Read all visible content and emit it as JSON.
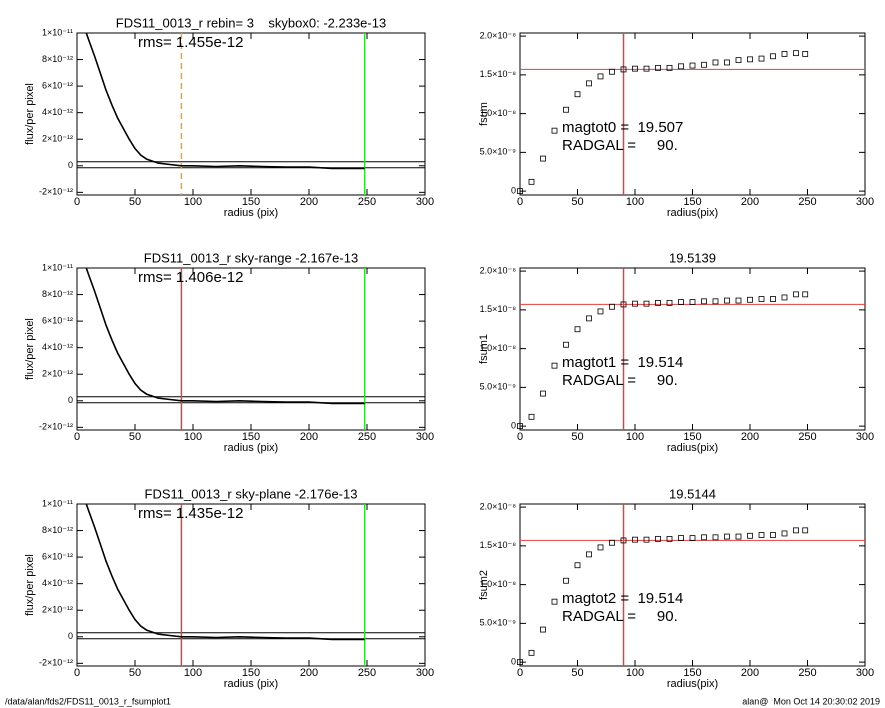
{
  "chart_data": [
    {
      "type": "line",
      "title": "FDS11_0013_r rebin= 3    skybox0: -2.233e-13",
      "annotation": "rms= 1.455e-12",
      "x_label": "radius (pix)",
      "y_label": "flux/per pixel",
      "color": "#000000",
      "x": [
        8,
        10,
        15,
        20,
        25,
        30,
        35,
        40,
        45,
        50,
        55,
        60,
        70,
        80,
        90,
        100,
        120,
        140,
        160,
        180,
        200,
        220,
        248
      ],
      "values": [
        1e-11,
        9.5e-12,
        8.3e-12,
        7e-12,
        5.7e-12,
        4.6e-12,
        3.6e-12,
        2.8e-12,
        2e-12,
        1.3e-12,
        8e-13,
        5e-13,
        2e-13,
        1e-13,
        0,
        0,
        -5e-14,
        0,
        -5e-14,
        -1e-13,
        -1e-13,
        -2e-13,
        -2e-13
      ],
      "vlines": [
        {
          "x": 90,
          "color": "#f0a030",
          "dash": true
        },
        {
          "x": 248,
          "color": "#33dd33",
          "dash": false
        }
      ],
      "hlines": [
        {
          "y": 3e-13,
          "color": "#000000"
        },
        {
          "y": -1.5e-13,
          "color": "#000000"
        }
      ],
      "xlim": [
        0,
        300
      ],
      "xticks": [
        0,
        50,
        100,
        150,
        200,
        250,
        300
      ],
      "ylim": [
        -2.2e-12,
        1e-11
      ],
      "yticks": [
        {
          "value": -2e-12,
          "label": "-2×10⁻¹²"
        },
        0,
        {
          "value": 2e-12,
          "label": "2×10⁻¹²"
        },
        {
          "value": 4e-12,
          "label": "4×10⁻¹²"
        },
        {
          "value": 6e-12,
          "label": "6×10⁻¹²"
        },
        {
          "value": 8e-12,
          "label": "8×10⁻¹²"
        },
        {
          "value": 1e-11,
          "label": "1×10⁻¹¹"
        }
      ]
    },
    {
      "type": "scatter",
      "annotations": [
        "magtot0 =  19.507",
        "RADGAL =     90."
      ],
      "x_label": "radius(pix)",
      "y_label": "fsum",
      "color": "#000000",
      "x": [
        0,
        10,
        20,
        30,
        40,
        50,
        60,
        70,
        80,
        90,
        100,
        110,
        120,
        130,
        140,
        150,
        160,
        170,
        180,
        190,
        200,
        210,
        220,
        230,
        240,
        248
      ],
      "values": [
        0,
        1.2e-09,
        4.2e-09,
        7.8e-09,
        1.05e-08,
        1.25e-08,
        1.39e-08,
        1.48e-08,
        1.54e-08,
        1.57e-08,
        1.58e-08,
        1.58e-08,
        1.59e-08,
        1.59e-08,
        1.61e-08,
        1.62e-08,
        1.63e-08,
        1.66e-08,
        1.66e-08,
        1.69e-08,
        1.7e-08,
        1.71e-08,
        1.74e-08,
        1.77e-08,
        1.78e-08,
        1.77e-08
      ],
      "vlines": [
        {
          "x": 90,
          "color": "#e04040",
          "dash": false
        }
      ],
      "hlines": [
        {
          "y": 1.57e-08,
          "color": "#e04040"
        }
      ],
      "xlim": [
        0,
        300
      ],
      "xticks": [
        0,
        50,
        100,
        150,
        200,
        250,
        300
      ],
      "ylim": [
        -5e-10,
        2.04e-08
      ],
      "yticks": [
        0,
        {
          "value": 5e-09,
          "label": "5.0×10⁻⁹"
        },
        {
          "value": 1e-08,
          "label": "1.0×10⁻⁸"
        },
        {
          "value": 1.5e-08,
          "label": "1.5×10⁻⁸"
        },
        {
          "value": 2e-08,
          "label": "2.0×10⁻⁸"
        }
      ]
    },
    {
      "type": "line",
      "title": "FDS11_0013_r sky-range -2.167e-13",
      "annotation": "rms= 1.406e-12",
      "x_label": "radius (pix)",
      "y_label": "flux/per pixel",
      "color": "#000000",
      "x": [
        8,
        10,
        15,
        20,
        25,
        30,
        35,
        40,
        45,
        50,
        55,
        60,
        70,
        80,
        90,
        100,
        120,
        140,
        160,
        180,
        200,
        220,
        248
      ],
      "values": [
        1e-11,
        9.5e-12,
        8.3e-12,
        7e-12,
        5.7e-12,
        4.6e-12,
        3.6e-12,
        2.8e-12,
        2e-12,
        1.3e-12,
        8e-13,
        5e-13,
        2e-13,
        1e-13,
        0,
        0,
        -5e-14,
        0,
        -5e-14,
        -1e-13,
        -1e-13,
        -2e-13,
        -2e-13
      ],
      "vlines": [
        {
          "x": 90,
          "color": "#e04040",
          "dash": false
        },
        {
          "x": 248,
          "color": "#33dd33",
          "dash": false
        }
      ],
      "hlines": [
        {
          "y": 3e-13,
          "color": "#000000"
        },
        {
          "y": -1.5e-13,
          "color": "#000000"
        }
      ],
      "xlim": [
        0,
        300
      ],
      "xticks": [
        0,
        50,
        100,
        150,
        200,
        250,
        300
      ],
      "ylim": [
        -2.2e-12,
        1e-11
      ],
      "yticks": [
        {
          "value": -2e-12,
          "label": "-2×10⁻¹²"
        },
        0,
        {
          "value": 2e-12,
          "label": "2×10⁻¹²"
        },
        {
          "value": 4e-12,
          "label": "4×10⁻¹²"
        },
        {
          "value": 6e-12,
          "label": "6×10⁻¹²"
        },
        {
          "value": 8e-12,
          "label": "8×10⁻¹²"
        },
        {
          "value": 1e-11,
          "label": "1×10⁻¹¹"
        }
      ]
    },
    {
      "type": "scatter",
      "title": "19.5139",
      "annotations": [
        "magtot1 =  19.514",
        "RADGAL =     90."
      ],
      "x_label": "radius(pix)",
      "y_label": "fsum1",
      "color": "#000000",
      "x": [
        0,
        10,
        20,
        30,
        40,
        50,
        60,
        70,
        80,
        90,
        100,
        110,
        120,
        130,
        140,
        150,
        160,
        170,
        180,
        190,
        200,
        210,
        220,
        230,
        240,
        248
      ],
      "values": [
        0,
        1.2e-09,
        4.2e-09,
        7.8e-09,
        1.05e-08,
        1.25e-08,
        1.39e-08,
        1.48e-08,
        1.54e-08,
        1.57e-08,
        1.58e-08,
        1.58e-08,
        1.59e-08,
        1.59e-08,
        1.6e-08,
        1.6e-08,
        1.61e-08,
        1.61e-08,
        1.62e-08,
        1.62e-08,
        1.63e-08,
        1.64e-08,
        1.64e-08,
        1.66e-08,
        1.7e-08,
        1.7e-08
      ],
      "vlines": [
        {
          "x": 90,
          "color": "#e04040",
          "dash": false
        }
      ],
      "hlines": [
        {
          "y": 1.57e-08,
          "color": "#e04040"
        }
      ],
      "xlim": [
        0,
        300
      ],
      "xticks": [
        0,
        50,
        100,
        150,
        200,
        250,
        300
      ],
      "ylim": [
        -5e-10,
        2.04e-08
      ],
      "yticks": [
        0,
        {
          "value": 5e-09,
          "label": "5.0×10⁻⁹"
        },
        {
          "value": 1e-08,
          "label": "1.0×10⁻⁸"
        },
        {
          "value": 1.5e-08,
          "label": "1.5×10⁻⁸"
        },
        {
          "value": 2e-08,
          "label": "2.0×10⁻⁸"
        }
      ]
    },
    {
      "type": "line",
      "title": "FDS11_0013_r sky-plane -2.176e-13",
      "annotation": "rms= 1.435e-12",
      "x_label": "radius (pix)",
      "y_label": "flux/per pixel",
      "color": "#000000",
      "x": [
        8,
        10,
        15,
        20,
        25,
        30,
        35,
        40,
        45,
        50,
        55,
        60,
        70,
        80,
        90,
        100,
        120,
        140,
        160,
        180,
        200,
        220,
        248
      ],
      "values": [
        1e-11,
        9.5e-12,
        8.3e-12,
        7e-12,
        5.7e-12,
        4.6e-12,
        3.6e-12,
        2.8e-12,
        2e-12,
        1.3e-12,
        8e-13,
        5e-13,
        2e-13,
        1e-13,
        0,
        0,
        -5e-14,
        0,
        -5e-14,
        -1e-13,
        -1e-13,
        -2e-13,
        -2e-13
      ],
      "vlines": [
        {
          "x": 90,
          "color": "#e04040",
          "dash": false
        },
        {
          "x": 248,
          "color": "#33dd33",
          "dash": false
        }
      ],
      "hlines": [
        {
          "y": 3e-13,
          "color": "#000000"
        },
        {
          "y": -1.5e-13,
          "color": "#000000"
        }
      ],
      "xlim": [
        0,
        300
      ],
      "xticks": [
        0,
        50,
        100,
        150,
        200,
        250,
        300
      ],
      "ylim": [
        -2.2e-12,
        1e-11
      ],
      "yticks": [
        {
          "value": -2e-12,
          "label": "-2×10⁻¹²"
        },
        0,
        {
          "value": 2e-12,
          "label": "2×10⁻¹²"
        },
        {
          "value": 4e-12,
          "label": "4×10⁻¹²"
        },
        {
          "value": 6e-12,
          "label": "6×10⁻¹²"
        },
        {
          "value": 8e-12,
          "label": "8×10⁻¹²"
        },
        {
          "value": 1e-11,
          "label": "1×10⁻¹¹"
        }
      ]
    },
    {
      "type": "scatter",
      "title": "19.5144",
      "annotations": [
        "magtot2 =  19.514",
        "RADGAL =     90."
      ],
      "x_label": "radius(pix)",
      "y_label": "fsum2",
      "color": "#000000",
      "x": [
        0,
        10,
        20,
        30,
        40,
        50,
        60,
        70,
        80,
        90,
        100,
        110,
        120,
        130,
        140,
        150,
        160,
        170,
        180,
        190,
        200,
        210,
        220,
        230,
        240,
        248
      ],
      "values": [
        0,
        1.2e-09,
        4.2e-09,
        7.8e-09,
        1.05e-08,
        1.25e-08,
        1.39e-08,
        1.48e-08,
        1.54e-08,
        1.57e-08,
        1.58e-08,
        1.58e-08,
        1.59e-08,
        1.59e-08,
        1.6e-08,
        1.6e-08,
        1.61e-08,
        1.61e-08,
        1.62e-08,
        1.62e-08,
        1.63e-08,
        1.64e-08,
        1.64e-08,
        1.66e-08,
        1.7e-08,
        1.7e-08
      ],
      "vlines": [
        {
          "x": 90,
          "color": "#e04040",
          "dash": false
        }
      ],
      "hlines": [
        {
          "y": 1.57e-08,
          "color": "#e04040"
        }
      ],
      "xlim": [
        0,
        300
      ],
      "xticks": [
        0,
        50,
        100,
        150,
        200,
        250,
        300
      ],
      "ylim": [
        -5e-10,
        2.04e-08
      ],
      "yticks": [
        0,
        {
          "value": 5e-09,
          "label": "5.0×10⁻⁹"
        },
        {
          "value": 1e-08,
          "label": "1.0×10⁻⁸"
        },
        {
          "value": 1.5e-08,
          "label": "1.5×10⁻⁸"
        },
        {
          "value": 2e-08,
          "label": "2.0×10⁻⁸"
        }
      ]
    }
  ],
  "footer": {
    "left": "/data/alan/fds2/FDS11_0013_r_fsumplot1",
    "right": "alan@  Mon Oct 14 20:30:02 2019"
  }
}
